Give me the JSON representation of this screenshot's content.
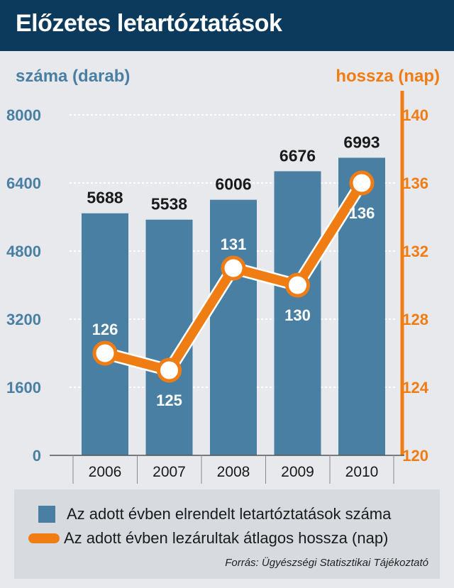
{
  "header": {
    "title": "Előzetes letartóztatások"
  },
  "axes": {
    "left_label": "száma (darab)",
    "right_label": "hossza (nap)"
  },
  "chart_data": {
    "type": "bar+line",
    "categories": [
      "2006",
      "2007",
      "2008",
      "2009",
      "2010"
    ],
    "series": [
      {
        "name": "Az adott évben elrendelt letartóztatások száma",
        "type": "bar",
        "axis": "left",
        "values": [
          5688,
          5538,
          6006,
          6676,
          6993
        ],
        "color": "#4a7fa4"
      },
      {
        "name": "Az adott évben lezárultak átlagos hossza (nap)",
        "type": "line",
        "axis": "right",
        "values": [
          126,
          125,
          131,
          130,
          136
        ],
        "color": "#f07d14"
      }
    ],
    "y_left": {
      "min": 0,
      "max": 8000,
      "ticks": [
        0,
        1600,
        3200,
        4800,
        6400,
        8000
      ]
    },
    "y_right": {
      "min": 120,
      "max": 140,
      "ticks": [
        120,
        124,
        128,
        132,
        136,
        140
      ]
    },
    "line_label_positions": [
      "above",
      "below",
      "above",
      "below",
      "below"
    ],
    "grid": true,
    "legend_position": "bottom"
  },
  "legend": {
    "bar_label": "Az adott évben elrendelt letartóztatások száma",
    "line_label": "Az adott évben lezárultak átlagos hossza (nap)"
  },
  "source": "Forrás: Ügyészségi Statisztikai Tájékoztató"
}
